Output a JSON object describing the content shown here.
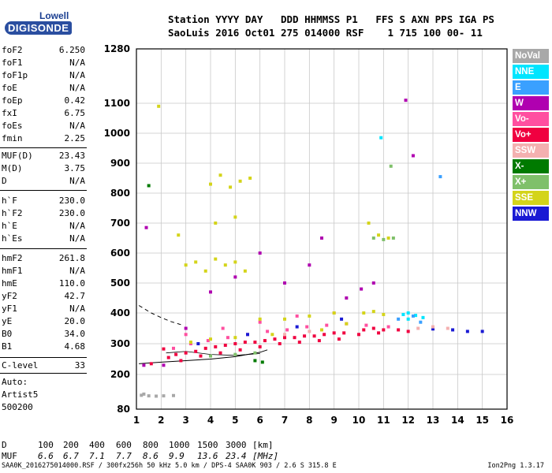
{
  "logo": {
    "line1": "Lowell",
    "line2": "DIGISONDE"
  },
  "header": {
    "line1": "Station YYYY DAY   DDD HHMMSS P1   FFS S AXN PPS IGA PS",
    "line2": "SaoLuis 2016 Oct01 275 014000 RSF    1 715 100 00- 11"
  },
  "params_block1": [
    {
      "name": "foF2",
      "value": "6.250"
    },
    {
      "name": "foF1",
      "value": "N/A"
    },
    {
      "name": "foF1p",
      "value": "N/A"
    },
    {
      "name": "foE",
      "value": "N/A"
    },
    {
      "name": "foEp",
      "value": "0.42"
    },
    {
      "name": "fxI",
      "value": "6.75"
    },
    {
      "name": "foEs",
      "value": "N/A"
    },
    {
      "name": "fmin",
      "value": "2.25"
    }
  ],
  "params_block2": [
    {
      "name": "MUF(D)",
      "value": "23.43"
    },
    {
      "name": "M(D)",
      "value": "3.75"
    },
    {
      "name": "D",
      "value": "N/A"
    }
  ],
  "params_block3": [
    {
      "name": "h`F",
      "value": "230.0"
    },
    {
      "name": "h`F2",
      "value": "230.0"
    },
    {
      "name": "h`E",
      "value": "N/A"
    },
    {
      "name": "h`Es",
      "value": "N/A"
    }
  ],
  "params_block4": [
    {
      "name": "hmF2",
      "value": "261.8"
    },
    {
      "name": "hmF1",
      "value": "N/A"
    },
    {
      "name": "hmE",
      "value": "110.0"
    },
    {
      "name": "yF2",
      "value": "42.7"
    },
    {
      "name": "yF1",
      "value": "N/A"
    },
    {
      "name": "yE",
      "value": "20.0"
    },
    {
      "name": "B0",
      "value": "34.0"
    },
    {
      "name": "B1",
      "value": "4.68"
    }
  ],
  "params_block5": [
    {
      "name": "C-level",
      "value": "33"
    }
  ],
  "autoscaling": {
    "line1": "Auto:",
    "line2": "Artist5",
    "line3": "500200"
  },
  "legend": [
    {
      "label": "NoVal",
      "color": "#a8a8a8"
    },
    {
      "label": "NNE",
      "color": "#00e5ff"
    },
    {
      "label": "E",
      "color": "#3aa0ff"
    },
    {
      "label": "W",
      "color": "#b000b0"
    },
    {
      "label": "Vo-",
      "color": "#ff4fa0"
    },
    {
      "label": "Vo+",
      "color": "#f00040"
    },
    {
      "label": "SSW",
      "color": "#f4b0b0"
    },
    {
      "label": "X-",
      "color": "#007a00"
    },
    {
      "label": "X+",
      "color": "#7fc06a"
    },
    {
      "label": "SSE",
      "color": "#d4d41a"
    },
    {
      "label": "NNW",
      "color": "#1a1ad4"
    }
  ],
  "bottom_table": {
    "d_label": "D",
    "d_values": [
      "100",
      "200",
      "400",
      "600",
      "800",
      "1000",
      "1500",
      "3000",
      "[km]"
    ],
    "muf_label": "MUF",
    "muf_values": [
      "6.6",
      "6.7",
      "7.1",
      "7.7",
      "8.6",
      "9.9",
      "13.6",
      "23.4",
      "[MHz]"
    ]
  },
  "footer": {
    "file_info": "SAA0K_2016275014000.RSF / 300fx256h 50 kHz 5.0 km / DPS-4 SAA0K 903 / 2.6 S 315.8 E",
    "version": "Ion2Png 1.3.17"
  },
  "chart_data": {
    "type": "scatter",
    "title": "",
    "xlabel": "",
    "ylabel": "",
    "xlim": [
      1,
      16
    ],
    "ylim": [
      80,
      1280
    ],
    "x_ticks": [
      1,
      2,
      3,
      4,
      5,
      6,
      7,
      8,
      9,
      10,
      11,
      12,
      13,
      14,
      15,
      16
    ],
    "y_ticks": [
      80,
      200,
      300,
      400,
      500,
      600,
      700,
      800,
      900,
      1000,
      1100,
      1280
    ],
    "grid": true,
    "legend_position": "right",
    "series": [
      {
        "name": "Vo+",
        "points": [
          [
            2.3,
            255
          ],
          [
            2.6,
            265
          ],
          [
            3.0,
            270
          ],
          [
            3.4,
            275
          ],
          [
            3.8,
            285
          ],
          [
            4.2,
            290
          ],
          [
            4.6,
            295
          ],
          [
            5.0,
            300
          ],
          [
            5.4,
            305
          ],
          [
            5.8,
            305
          ],
          [
            6.2,
            310
          ],
          [
            6.6,
            315
          ],
          [
            7.0,
            320
          ],
          [
            7.4,
            320
          ],
          [
            7.8,
            325
          ],
          [
            8.2,
            325
          ],
          [
            8.6,
            330
          ],
          [
            9.0,
            335
          ],
          [
            9.4,
            335
          ],
          [
            10.2,
            345
          ],
          [
            10.6,
            350
          ],
          [
            11.0,
            345
          ],
          [
            11.6,
            345
          ],
          [
            12.0,
            340
          ],
          [
            2.8,
            245
          ],
          [
            3.6,
            260
          ],
          [
            4.4,
            270
          ],
          [
            5.2,
            280
          ],
          [
            6.0,
            290
          ],
          [
            6.8,
            300
          ],
          [
            7.6,
            305
          ],
          [
            8.4,
            310
          ],
          [
            9.2,
            315
          ],
          [
            10.0,
            330
          ],
          [
            10.8,
            335
          ],
          [
            2.1,
            283
          ],
          [
            1.6,
            235
          ]
        ]
      },
      {
        "name": "Vo-",
        "points": [
          [
            2.5,
            285
          ],
          [
            3.2,
            300
          ],
          [
            3.9,
            310
          ],
          [
            4.7,
            320
          ],
          [
            5.5,
            330
          ],
          [
            6.3,
            340
          ],
          [
            7.1,
            345
          ],
          [
            7.9,
            355
          ],
          [
            8.7,
            360
          ],
          [
            9.5,
            365
          ],
          [
            3.0,
            330
          ],
          [
            4.5,
            350
          ],
          [
            6.0,
            370
          ],
          [
            7.5,
            390
          ],
          [
            9.0,
            400
          ],
          [
            10.3,
            360
          ],
          [
            11.2,
            355
          ]
        ]
      },
      {
        "name": "SSE",
        "points": [
          [
            3.0,
            560
          ],
          [
            3.4,
            570
          ],
          [
            3.8,
            540
          ],
          [
            4.2,
            580
          ],
          [
            4.6,
            560
          ],
          [
            5.0,
            570
          ],
          [
            5.4,
            540
          ],
          [
            4.0,
            830
          ],
          [
            4.4,
            860
          ],
          [
            4.8,
            820
          ],
          [
            5.2,
            840
          ],
          [
            5.6,
            850
          ],
          [
            6.0,
            380
          ],
          [
            7.0,
            380
          ],
          [
            8.0,
            390
          ],
          [
            9.0,
            400
          ],
          [
            10.2,
            400
          ],
          [
            10.6,
            405
          ],
          [
            11.0,
            395
          ],
          [
            10.4,
            700
          ],
          [
            10.8,
            660
          ],
          [
            11.2,
            650
          ],
          [
            3.2,
            305
          ],
          [
            4.0,
            315
          ],
          [
            5.0,
            320
          ],
          [
            6.5,
            330
          ],
          [
            8.5,
            345
          ],
          [
            9.5,
            365
          ],
          [
            4.2,
            700
          ],
          [
            5.0,
            720
          ],
          [
            2.7,
            660
          ],
          [
            1.9,
            1090
          ]
        ]
      },
      {
        "name": "X+",
        "points": [
          [
            10.6,
            650
          ],
          [
            11.0,
            645
          ],
          [
            11.4,
            650
          ],
          [
            11.3,
            890
          ],
          [
            4.0,
            260
          ],
          [
            5.0,
            265
          ],
          [
            5.8,
            270
          ]
        ]
      },
      {
        "name": "W",
        "points": [
          [
            2.1,
            230
          ],
          [
            3.0,
            350
          ],
          [
            4.0,
            470
          ],
          [
            5.0,
            520
          ],
          [
            6.0,
            600
          ],
          [
            7.0,
            500
          ],
          [
            8.0,
            560
          ],
          [
            8.5,
            650
          ],
          [
            9.5,
            450
          ],
          [
            10.1,
            480
          ],
          [
            10.6,
            500
          ],
          [
            1.3,
            230
          ],
          [
            1.4,
            685
          ],
          [
            11.9,
            1110
          ],
          [
            12.2,
            925
          ]
        ]
      },
      {
        "name": "NNE",
        "points": [
          [
            11.8,
            395
          ],
          [
            12.0,
            400
          ],
          [
            12.3,
            392
          ],
          [
            12.6,
            385
          ],
          [
            12.0,
            380
          ],
          [
            10.9,
            985
          ]
        ]
      },
      {
        "name": "E",
        "points": [
          [
            11.6,
            380
          ],
          [
            12.2,
            390
          ],
          [
            12.5,
            370
          ],
          [
            13.3,
            855
          ]
        ]
      },
      {
        "name": "NNW",
        "points": [
          [
            13.8,
            345
          ],
          [
            14.4,
            340
          ],
          [
            15.0,
            340
          ],
          [
            13.0,
            348
          ],
          [
            3.5,
            300
          ],
          [
            5.5,
            330
          ],
          [
            7.5,
            355
          ],
          [
            9.3,
            380
          ]
        ]
      },
      {
        "name": "X-",
        "points": [
          [
            5.8,
            245
          ],
          [
            6.1,
            240
          ],
          [
            1.5,
            825
          ]
        ]
      },
      {
        "name": "SSW",
        "points": [
          [
            12.4,
            350
          ],
          [
            13.0,
            355
          ],
          [
            13.6,
            350
          ],
          [
            7.0,
            330
          ],
          [
            8.0,
            340
          ]
        ]
      },
      {
        "name": "NoVal",
        "points": [
          [
            1.2,
            128
          ],
          [
            1.5,
            126
          ],
          [
            1.8,
            125
          ],
          [
            2.1,
            126
          ],
          [
            2.5,
            127
          ],
          [
            1.3,
            132
          ]
        ]
      }
    ]
  }
}
